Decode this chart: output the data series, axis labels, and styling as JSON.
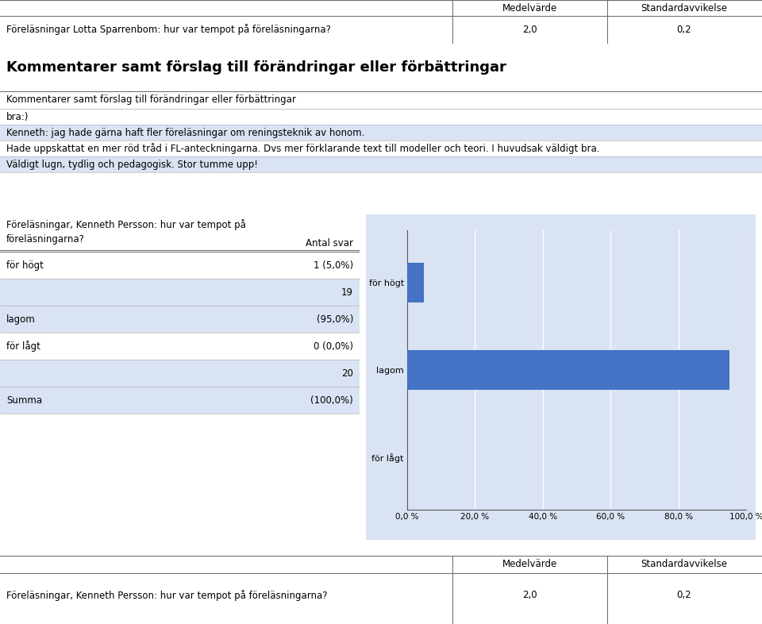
{
  "top_table_header": [
    "",
    "Medelvärde",
    "Standardavvikelse"
  ],
  "top_table_row": [
    "Föreläsningar Lotta Sparrenbom: hur var tempot på föreläsningarna?",
    "2,0",
    "0,2"
  ],
  "section_title": "Kommentarer samt förslag till förändringar eller förbättringar",
  "comment_section_label": "Kommentarer samt förslag till förändringar eller förbättringar",
  "comments": [
    {
      "text": "bra:)",
      "highlight": false
    },
    {
      "text": "Kenneth: jag hade gärna haft fler föreläsningar om reningsteknik av honom.",
      "highlight": true
    },
    {
      "text": "Hade uppskattat en mer röd tråd i FL-anteckningarna. Dvs mer förklarande text till modeller och teori. I huvudsak väldigt bra.",
      "highlight": false
    },
    {
      "text": "Väldigt lugn, tydlig och pedagogisk. Stor tumme upp!",
      "highlight": true
    }
  ],
  "chart_question_label1": "Föreläsningar, Kenneth Persson: hur var tempot på",
  "chart_question_label2": "föreläsningarna?",
  "table_col2_header": "Antal svar",
  "table_rows": [
    {
      "label": "för högt",
      "count": "1 (5,0%)",
      "highlight": false
    },
    {
      "label": "",
      "count": "19",
      "highlight": true
    },
    {
      "label": "lagom",
      "count": "(95,0%)",
      "highlight": true
    },
    {
      "label": "för lågt",
      "count": "0 (0,0%)",
      "highlight": false
    },
    {
      "label": "",
      "count": "20",
      "highlight": true
    },
    {
      "label": "Summa",
      "count": "(100,0%)",
      "highlight": true
    }
  ],
  "bar_categories": [
    "för högt",
    "lagom",
    "för lågt"
  ],
  "bar_values": [
    5.0,
    95.0,
    0.0
  ],
  "bar_color": "#4472C4",
  "chart_bg_color": "#DAE3F3",
  "x_ticks": [
    0,
    20,
    40,
    60,
    80,
    100
  ],
  "x_tick_labels": [
    "0,0 %",
    "20,0 %",
    "40,0 %",
    "60,0 %",
    "80,0 %",
    "100,0 %"
  ],
  "bottom_table_header": [
    "",
    "Medelvärde",
    "Standardavvikelse"
  ],
  "bottom_table_row": [
    "Föreläsningar, Kenneth Persson: hur var tempot på föreläsningarna?",
    "2,0",
    "0,2"
  ],
  "highlight_color": "#DAE3F3",
  "white": "#FFFFFF",
  "text_color": "#000000",
  "line_color": "#AAAAAA",
  "dark_line": "#666666"
}
